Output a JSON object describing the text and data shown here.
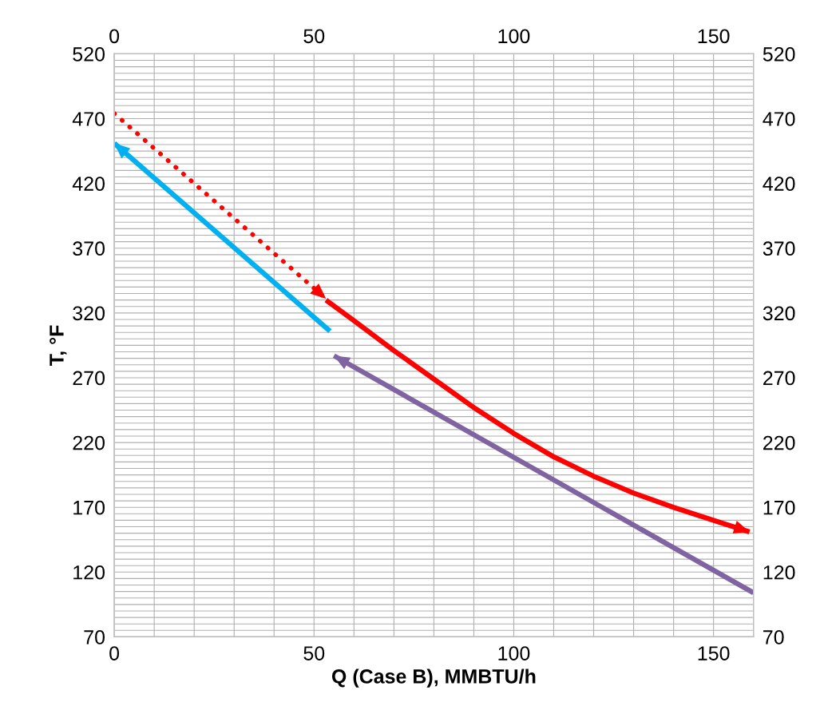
{
  "chart_data": {
    "type": "line",
    "xlabel": "Q (Case B), MMBTU/h",
    "ylabel": "T, °F",
    "xlim": [
      0,
      160
    ],
    "ylim": [
      70,
      520
    ],
    "x2lim": [
      0,
      160
    ],
    "y2lim": [
      70,
      520
    ],
    "xticks": [
      0,
      {
        "value": 10,
        "label": null
      },
      {
        "value": 20,
        "label": null
      },
      {
        "value": 30,
        "label": null
      },
      {
        "value": 40,
        "label": null
      },
      50,
      {
        "value": 60,
        "label": null
      },
      {
        "value": 70,
        "label": null
      },
      {
        "value": 80,
        "label": null
      },
      {
        "value": 90,
        "label": null
      },
      100,
      {
        "value": 110,
        "label": null
      },
      {
        "value": 120,
        "label": null
      },
      {
        "value": 130,
        "label": null
      },
      {
        "value": 140,
        "label": null
      },
      150,
      {
        "value": 160,
        "label": null
      }
    ],
    "x2ticks": [
      0,
      50,
      100,
      150
    ],
    "yticks": [
      70,
      {
        "value": 75,
        "label": null
      },
      {
        "value": 80,
        "label": null
      },
      {
        "value": 85,
        "label": null
      },
      {
        "value": 90,
        "label": null
      },
      {
        "value": 95,
        "label": null
      },
      {
        "value": 100,
        "label": null
      },
      {
        "value": 105,
        "label": null
      },
      {
        "value": 110,
        "label": null
      },
      {
        "value": 115,
        "label": null
      },
      120,
      {
        "value": 125,
        "label": null
      },
      {
        "value": 130,
        "label": null
      },
      {
        "value": 135,
        "label": null
      },
      {
        "value": 140,
        "label": null
      },
      {
        "value": 145,
        "label": null
      },
      {
        "value": 150,
        "label": null
      },
      {
        "value": 155,
        "label": null
      },
      {
        "value": 160,
        "label": null
      },
      {
        "value": 165,
        "label": null
      },
      170,
      {
        "value": 175,
        "label": null
      },
      {
        "value": 180,
        "label": null
      },
      {
        "value": 185,
        "label": null
      },
      {
        "value": 190,
        "label": null
      },
      {
        "value": 195,
        "label": null
      },
      {
        "value": 200,
        "label": null
      },
      {
        "value": 205,
        "label": null
      },
      {
        "value": 210,
        "label": null
      },
      {
        "value": 215,
        "label": null
      },
      220,
      {
        "value": 225,
        "label": null
      },
      {
        "value": 230,
        "label": null
      },
      {
        "value": 235,
        "label": null
      },
      {
        "value": 240,
        "label": null
      },
      {
        "value": 245,
        "label": null
      },
      {
        "value": 250,
        "label": null
      },
      {
        "value": 255,
        "label": null
      },
      {
        "value": 260,
        "label": null
      },
      {
        "value": 265,
        "label": null
      },
      270,
      {
        "value": 275,
        "label": null
      },
      {
        "value": 280,
        "label": null
      },
      {
        "value": 285,
        "label": null
      },
      {
        "value": 290,
        "label": null
      },
      {
        "value": 295,
        "label": null
      },
      {
        "value": 300,
        "label": null
      },
      {
        "value": 305,
        "label": null
      },
      {
        "value": 310,
        "label": null
      },
      {
        "value": 315,
        "label": null
      },
      320,
      {
        "value": 325,
        "label": null
      },
      {
        "value": 330,
        "label": null
      },
      {
        "value": 335,
        "label": null
      },
      {
        "value": 340,
        "label": null
      },
      {
        "value": 345,
        "label": null
      },
      {
        "value": 350,
        "label": null
      },
      {
        "value": 355,
        "label": null
      },
      {
        "value": 360,
        "label": null
      },
      {
        "value": 365,
        "label": null
      },
      370,
      {
        "value": 375,
        "label": null
      },
      {
        "value": 380,
        "label": null
      },
      {
        "value": 385,
        "label": null
      },
      {
        "value": 390,
        "label": null
      },
      {
        "value": 395,
        "label": null
      },
      {
        "value": 400,
        "label": null
      },
      {
        "value": 405,
        "label": null
      },
      {
        "value": 410,
        "label": null
      },
      {
        "value": 415,
        "label": null
      },
      420,
      {
        "value": 425,
        "label": null
      },
      {
        "value": 430,
        "label": null
      },
      {
        "value": 435,
        "label": null
      },
      {
        "value": 440,
        "label": null
      },
      {
        "value": 445,
        "label": null
      },
      {
        "value": 450,
        "label": null
      },
      {
        "value": 455,
        "label": null
      },
      {
        "value": 460,
        "label": null
      },
      {
        "value": 465,
        "label": null
      },
      470,
      {
        "value": 475,
        "label": null
      },
      {
        "value": 480,
        "label": null
      },
      {
        "value": 485,
        "label": null
      },
      {
        "value": 490,
        "label": null
      },
      {
        "value": 495,
        "label": null
      },
      {
        "value": 500,
        "label": null
      },
      {
        "value": 505,
        "label": null
      },
      {
        "value": 510,
        "label": null
      },
      {
        "value": 515,
        "label": null
      },
      520
    ],
    "y2ticks": [
      70,
      120,
      170,
      220,
      270,
      320,
      370,
      420,
      470,
      520
    ],
    "grid": true,
    "marker": "none",
    "series": [
      {
        "color": "#ff0000",
        "line_style": "dotted",
        "x": [
          0,
          53
        ],
        "values": [
          474,
          331
        ]
      },
      {
        "color": "#ff0000",
        "line_style": "solid",
        "x": [
          53,
          60,
          70,
          80,
          90,
          100,
          110,
          120,
          130,
          140,
          150,
          159
        ],
        "values": [
          330,
          314,
          291,
          269,
          247,
          227,
          209,
          194,
          181,
          170,
          160,
          151
        ]
      },
      {
        "color": "#00b0f0",
        "line_style": "solid",
        "x": [
          54,
          0
        ],
        "values": [
          306,
          451
        ]
      },
      {
        "color": "#8064a2",
        "line_style": "solid",
        "x": [
          160,
          55
        ],
        "values": [
          104,
          287
        ]
      }
    ]
  }
}
